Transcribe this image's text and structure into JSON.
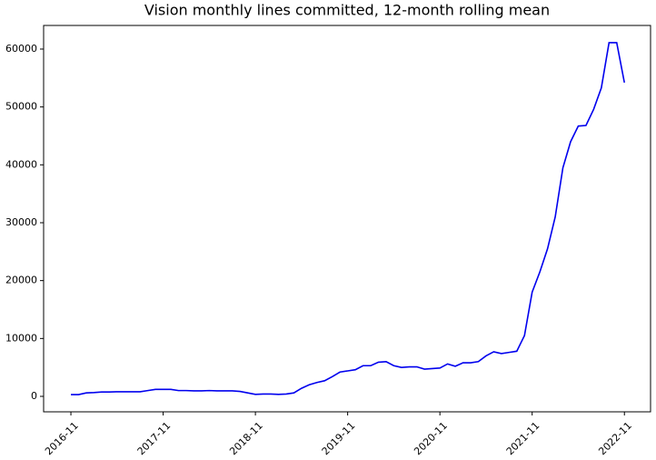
{
  "chart_data": {
    "type": "line",
    "title": "Vision monthly lines committed, 12-month rolling mean",
    "x": [
      "2016-11",
      null,
      null,
      null,
      null,
      null,
      null,
      null,
      null,
      null,
      null,
      null,
      "2017-11",
      null,
      null,
      null,
      null,
      null,
      null,
      null,
      null,
      null,
      null,
      null,
      "2018-11",
      null,
      null,
      null,
      null,
      null,
      null,
      null,
      null,
      null,
      null,
      null,
      "2019-11",
      null,
      null,
      null,
      null,
      null,
      null,
      null,
      null,
      null,
      null,
      null,
      "2020-11",
      null,
      null,
      null,
      null,
      null,
      null,
      null,
      null,
      null,
      null,
      null,
      "2021-11",
      null,
      null,
      null,
      null,
      null,
      null,
      null,
      null,
      null,
      null,
      null,
      "2022-11"
    ],
    "series": [
      {
        "color": "#0000ee",
        "values": [
          300,
          300,
          600,
          650,
          750,
          750,
          800,
          800,
          800,
          800,
          1000,
          1200,
          1200,
          1200,
          1000,
          1000,
          950,
          950,
          1000,
          950,
          950,
          950,
          850,
          600,
          350,
          400,
          400,
          350,
          400,
          600,
          1400,
          2000,
          2400,
          2700,
          3400,
          4200,
          4400,
          4600,
          5300,
          5300,
          5900,
          6000,
          5300,
          5000,
          5100,
          5100,
          4700,
          4800,
          4900,
          5600,
          5200,
          5800,
          5800,
          6000,
          7000,
          7700,
          7400,
          7600,
          7800,
          10500,
          18000,
          21500,
          25500,
          31000,
          39500,
          44000,
          46700,
          46800,
          49600,
          53300,
          61100,
          61100,
          54200
        ]
      }
    ],
    "ylim": [
      -2670,
      64080
    ],
    "yticks": [
      0,
      10000,
      20000,
      30000,
      40000,
      50000,
      60000
    ]
  }
}
